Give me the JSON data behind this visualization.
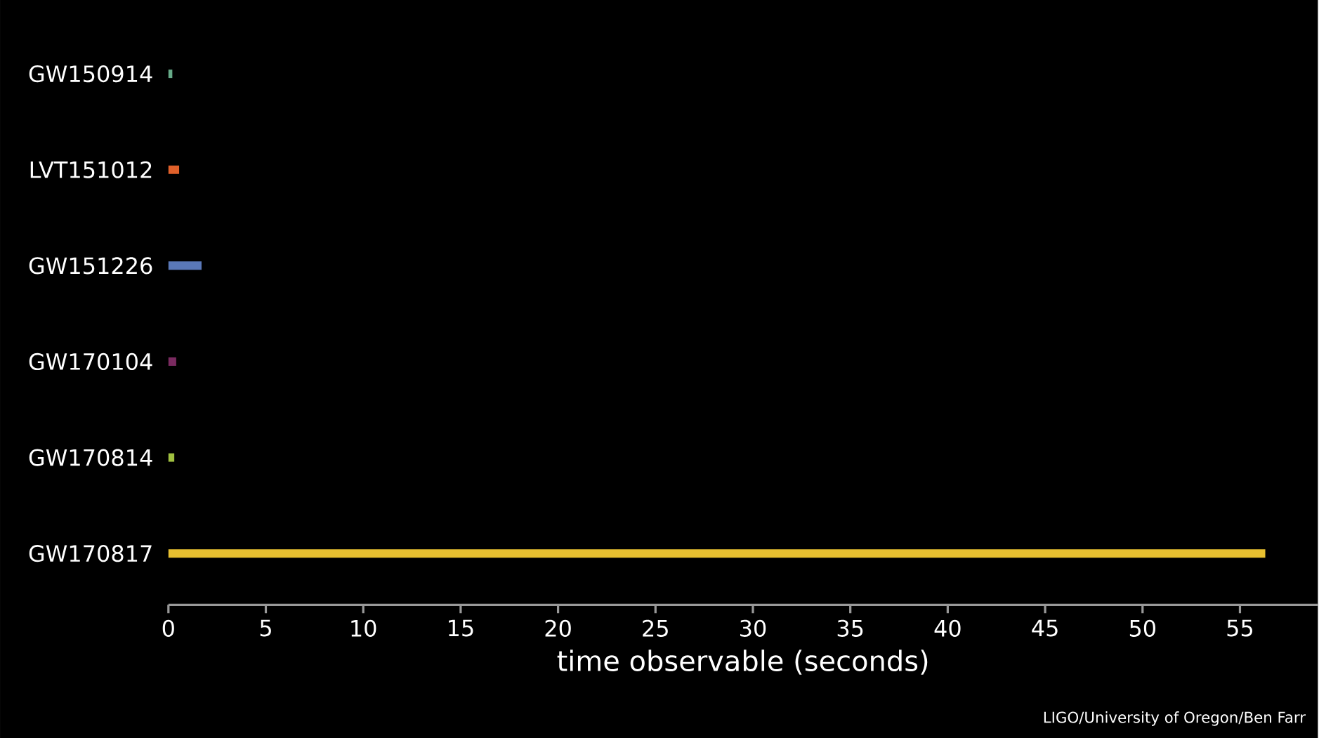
{
  "chart_data": {
    "type": "bar",
    "orientation": "horizontal",
    "categories": [
      "GW150914",
      "LVT151012",
      "GW151226",
      "GW170104",
      "GW170814",
      "GW170817"
    ],
    "values": [
      0.2,
      0.55,
      1.7,
      0.4,
      0.3,
      56.3
    ],
    "colors": [
      "#66aa88",
      "#e0602a",
      "#5a78b8",
      "#7a2a60",
      "#a0c040",
      "#e8c030"
    ],
    "xlim": [
      0,
      59
    ],
    "xticks": [
      0,
      5,
      10,
      15,
      20,
      25,
      30,
      35,
      40,
      45,
      50,
      55
    ],
    "xlabel": "time observable (seconds)",
    "annotations": [
      "LIGO/University of Oregon/Ben Farr"
    ]
  }
}
